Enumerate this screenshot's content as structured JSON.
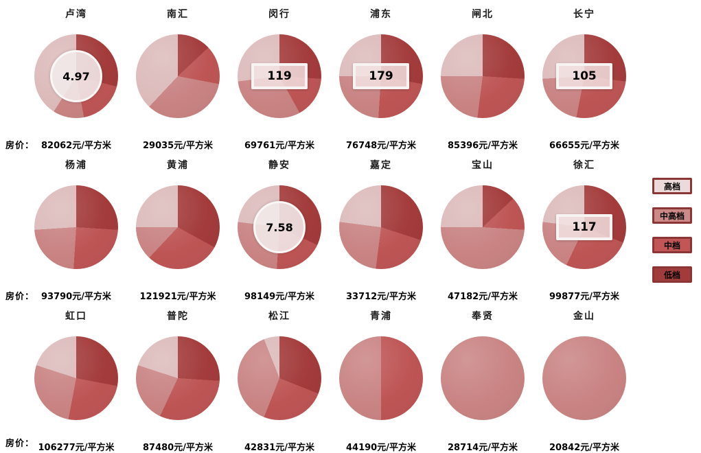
{
  "page": {
    "background": "#ffffff"
  },
  "rows": [
    {
      "label": "房价："
    },
    {
      "label": "房价："
    },
    {
      "label": "房价："
    }
  ],
  "legend": {
    "border_color": "#8B3636",
    "items": [
      {
        "label": "高档",
        "fill": "#ECD9D9",
        "pie_color": "#DCBABA"
      },
      {
        "label": "中高档",
        "fill": "#CD8888",
        "pie_color": "#C98383"
      },
      {
        "label": "中档",
        "fill": "#C25656",
        "pie_color": "#BE5555"
      },
      {
        "label": "低档",
        "fill": "#A03C3C",
        "pie_color": "#A33B3B"
      }
    ]
  },
  "chart_data": {
    "type": "pie",
    "grid": {
      "columns": 6,
      "rows": 3
    },
    "unit": "元/平方米",
    "price_prefix_label": "房价：",
    "legend_entries": [
      "高档",
      "中高档",
      "中档",
      "低档"
    ],
    "note": "segments are listed clockwise from 12 o'clock; pct values estimated from slice angles",
    "pies": [
      {
        "district": "卢湾",
        "price": "82062元/平方米",
        "overlay": {
          "type": "circle",
          "value": "4.97"
        },
        "segments": [
          {
            "category": "低档",
            "pct": 29
          },
          {
            "category": "中档",
            "pct": 18
          },
          {
            "category": "中高档",
            "pct": 12
          },
          {
            "category": "高档",
            "pct": 41
          }
        ]
      },
      {
        "district": "南汇",
        "price": "29035元/平方米",
        "segments": [
          {
            "category": "低档",
            "pct": 13
          },
          {
            "category": "中档",
            "pct": 15
          },
          {
            "category": "中高档",
            "pct": 34
          },
          {
            "category": "高档",
            "pct": 38
          }
        ]
      },
      {
        "district": "闵行",
        "price": "69761元/平方米",
        "overlay": {
          "type": "box",
          "value": "119"
        },
        "segments": [
          {
            "category": "低档",
            "pct": 26
          },
          {
            "category": "中档",
            "pct": 16
          },
          {
            "category": "中高档",
            "pct": 31
          },
          {
            "category": "高档",
            "pct": 27
          }
        ]
      },
      {
        "district": "浦东",
        "price": "76748元/平方米",
        "overlay": {
          "type": "box",
          "value": "179"
        },
        "segments": [
          {
            "category": "低档",
            "pct": 28
          },
          {
            "category": "中档",
            "pct": 23
          },
          {
            "category": "中高档",
            "pct": 24
          },
          {
            "category": "高档",
            "pct": 25
          }
        ]
      },
      {
        "district": "闸北",
        "price": "85396元/平方米",
        "segments": [
          {
            "category": "低档",
            "pct": 26
          },
          {
            "category": "中档",
            "pct": 26
          },
          {
            "category": "中高档",
            "pct": 23
          },
          {
            "category": "高档",
            "pct": 25
          }
        ]
      },
      {
        "district": "长宁",
        "price": "66655元/平方米",
        "overlay": {
          "type": "box",
          "value": "105"
        },
        "segments": [
          {
            "category": "低档",
            "pct": 27
          },
          {
            "category": "中档",
            "pct": 26
          },
          {
            "category": "中高档",
            "pct": 21
          },
          {
            "category": "高档",
            "pct": 26
          }
        ]
      },
      {
        "district": "杨浦",
        "price": "93790元/平方米",
        "segments": [
          {
            "category": "低档",
            "pct": 26
          },
          {
            "category": "中档",
            "pct": 25
          },
          {
            "category": "中高档",
            "pct": 23
          },
          {
            "category": "高档",
            "pct": 26
          }
        ]
      },
      {
        "district": "黄浦",
        "price": "121921元/平方米",
        "segments": [
          {
            "category": "低档",
            "pct": 33
          },
          {
            "category": "中档",
            "pct": 29
          },
          {
            "category": "中高档",
            "pct": 13
          },
          {
            "category": "高档",
            "pct": 25
          }
        ]
      },
      {
        "district": "静安",
        "price": "98149元/平方米",
        "overlay": {
          "type": "circle",
          "value": "7.58"
        },
        "segments": [
          {
            "category": "低档",
            "pct": 32
          },
          {
            "category": "中档",
            "pct": 19
          },
          {
            "category": "中高档",
            "pct": 26
          },
          {
            "category": "高档",
            "pct": 23
          }
        ]
      },
      {
        "district": "嘉定",
        "price": "33712元/平方米",
        "segments": [
          {
            "category": "低档",
            "pct": 30
          },
          {
            "category": "中档",
            "pct": 22
          },
          {
            "category": "中高档",
            "pct": 25
          },
          {
            "category": "高档",
            "pct": 23
          }
        ]
      },
      {
        "district": "宝山",
        "price": "47182元/平方米",
        "segments": [
          {
            "category": "低档",
            "pct": 13
          },
          {
            "category": "中档",
            "pct": 13
          },
          {
            "category": "中高档",
            "pct": 49
          },
          {
            "category": "高档",
            "pct": 25
          }
        ]
      },
      {
        "district": "徐汇",
        "price": "99877元/平方米",
        "overlay": {
          "type": "box",
          "value": "117"
        },
        "segments": [
          {
            "category": "低档",
            "pct": 31
          },
          {
            "category": "中档",
            "pct": 26
          },
          {
            "category": "中高档",
            "pct": 20
          },
          {
            "category": "高档",
            "pct": 23
          }
        ]
      },
      {
        "district": "虹口",
        "price": "106277元/平方米",
        "segments": [
          {
            "category": "低档",
            "pct": 28
          },
          {
            "category": "中档",
            "pct": 25
          },
          {
            "category": "中高档",
            "pct": 27
          },
          {
            "category": "高档",
            "pct": 20
          }
        ]
      },
      {
        "district": "普陀",
        "price": "87480元/平方米",
        "segments": [
          {
            "category": "低档",
            "pct": 26
          },
          {
            "category": "中档",
            "pct": 31
          },
          {
            "category": "中高档",
            "pct": 23
          },
          {
            "category": "高档",
            "pct": 20
          }
        ]
      },
      {
        "district": "松江",
        "price": "42831元/平方米",
        "segments": [
          {
            "category": "低档",
            "pct": 31
          },
          {
            "category": "中档",
            "pct": 25
          },
          {
            "category": "中高档",
            "pct": 38
          },
          {
            "category": "高档",
            "pct": 6
          }
        ]
      },
      {
        "district": "青浦",
        "price": "44190元/平方米",
        "segments": [
          {
            "category": "中档",
            "pct": 50
          },
          {
            "category": "中高档",
            "pct": 50
          }
        ]
      },
      {
        "district": "奉贤",
        "price": "28714元/平方米",
        "segments": [
          {
            "category": "中高档",
            "pct": 100
          }
        ]
      },
      {
        "district": "金山",
        "price": "20842元/平方米",
        "segments": [
          {
            "category": "中高档",
            "pct": 100
          }
        ]
      }
    ]
  }
}
